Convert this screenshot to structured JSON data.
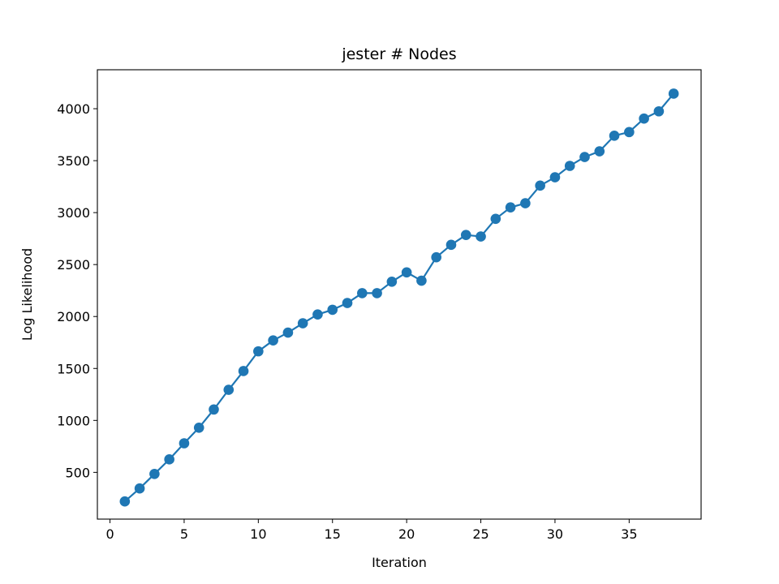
{
  "chart_data": {
    "type": "line",
    "title": "jester # Nodes",
    "xlabel": "Iteration",
    "ylabel": "Log Likelihood",
    "xlim": [
      -0.85,
      39.85
    ],
    "ylim": [
      50,
      4375
    ],
    "xticks": [
      0,
      5,
      10,
      15,
      20,
      25,
      30,
      35
    ],
    "yticks": [
      500,
      1000,
      1500,
      2000,
      2500,
      3000,
      3500,
      4000
    ],
    "grid": false,
    "legend": "none",
    "series": [
      {
        "color": "#1f77b4",
        "marker": "circle",
        "x": [
          1,
          2,
          3,
          4,
          5,
          6,
          7,
          8,
          9,
          10,
          11,
          12,
          13,
          14,
          15,
          16,
          17,
          18,
          19,
          20,
          21,
          22,
          23,
          24,
          25,
          26,
          27,
          28,
          29,
          30,
          31,
          32,
          33,
          34,
          35,
          36,
          37,
          38
        ],
        "y": [
          220,
          345,
          485,
          625,
          780,
          930,
          1105,
          1295,
          1475,
          1665,
          1770,
          1845,
          1935,
          2020,
          2065,
          2130,
          2225,
          2225,
          2335,
          2425,
          2345,
          2570,
          2690,
          2785,
          2770,
          2940,
          3050,
          3090,
          3260,
          3340,
          3450,
          3535,
          3590,
          3740,
          3775,
          3905,
          3975,
          4145
        ]
      }
    ]
  }
}
